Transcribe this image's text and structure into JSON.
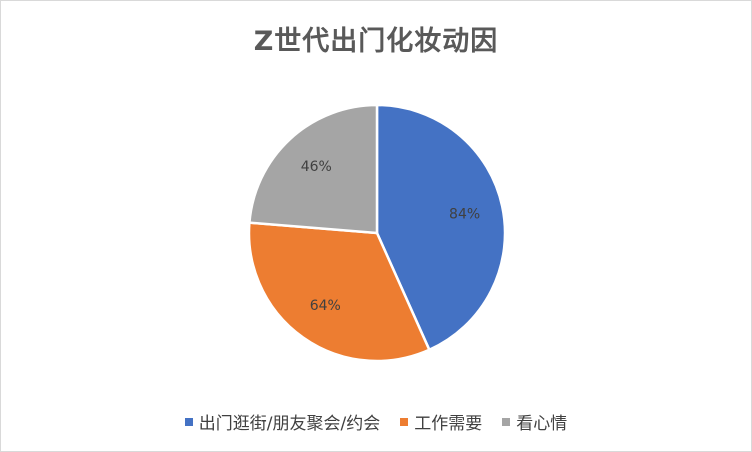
{
  "chart_data": {
    "type": "pie",
    "title": "Z世代出门化妆动因",
    "slices": [
      {
        "label": "出门逛街/朋友聚会/约会",
        "value": 84,
        "display": "84%",
        "color": "#4472c4"
      },
      {
        "label": "工作需要",
        "value": 64,
        "display": "64%",
        "color": "#ed7d31"
      },
      {
        "label": "看心情",
        "value": 46,
        "display": "46%",
        "color": "#a5a5a5"
      }
    ],
    "legend_position": "bottom",
    "label_color": "#404040"
  }
}
